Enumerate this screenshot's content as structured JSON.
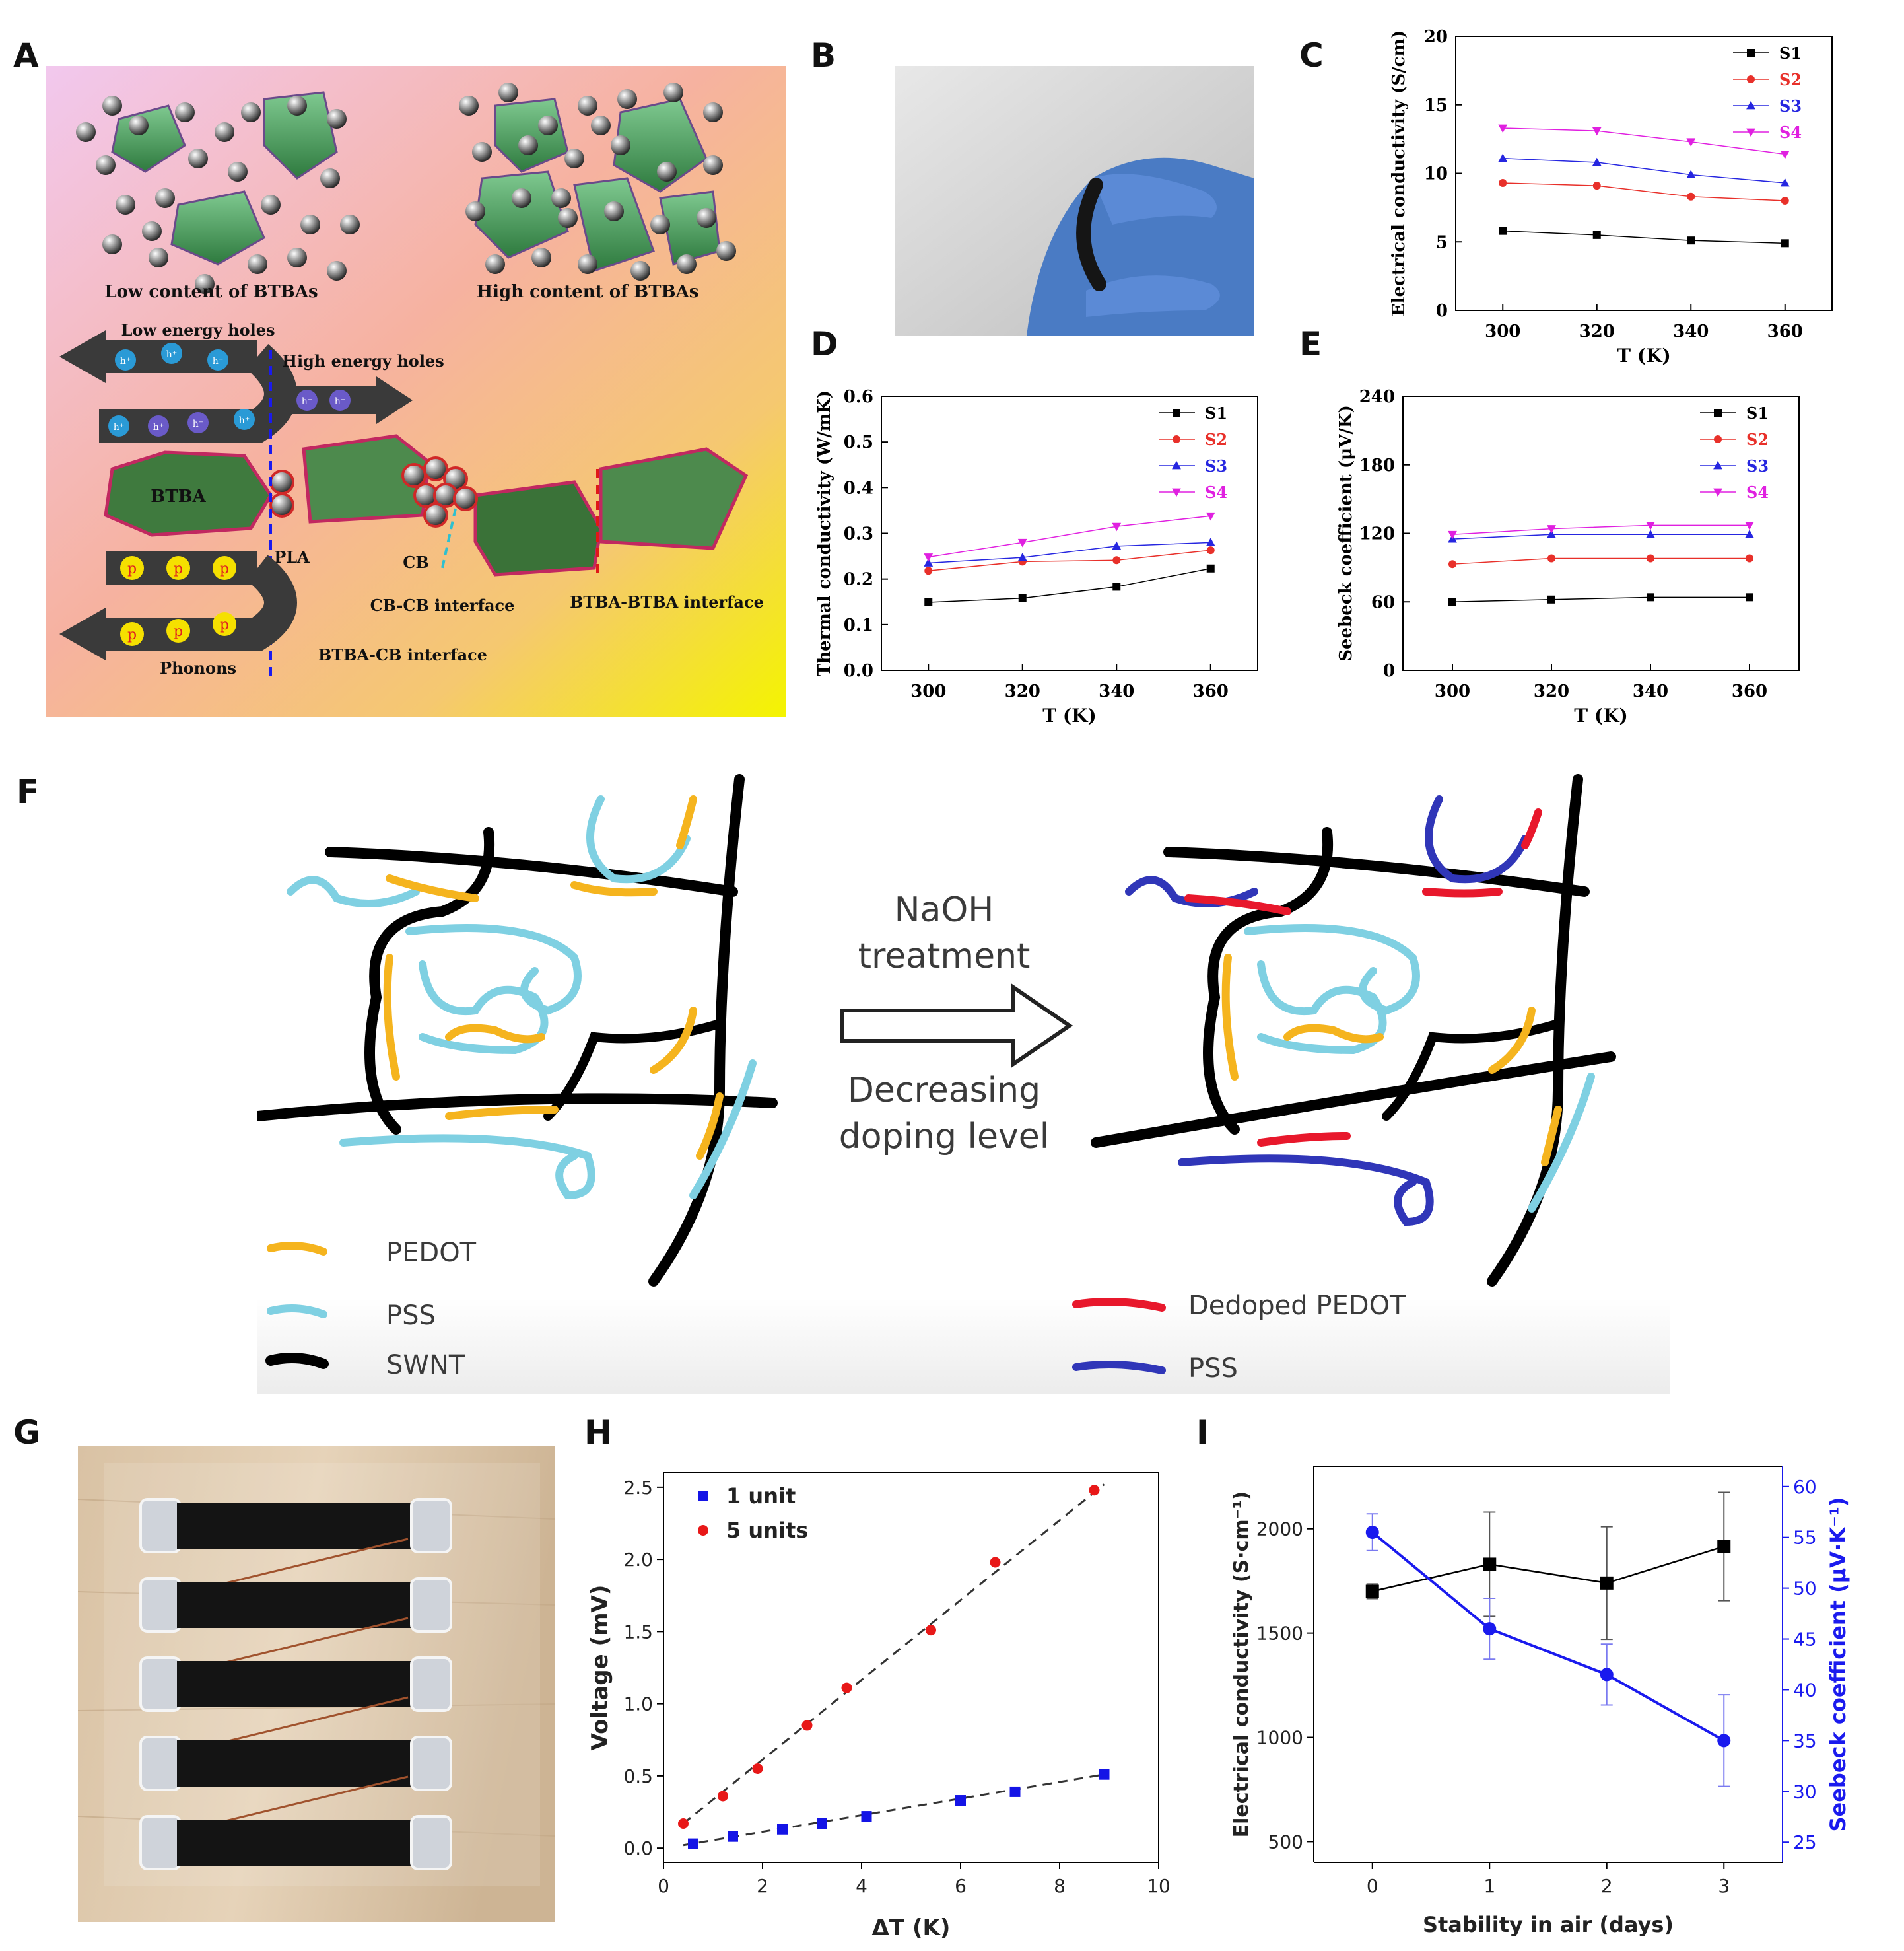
{
  "panel_letters": [
    "A",
    "B",
    "C",
    "D",
    "E",
    "F",
    "G",
    "H",
    "I"
  ],
  "panelA": {
    "low_caption": "Low content of BTBAs",
    "high_caption": "High content of BTBAs",
    "low_energy_holes": "Low energy holes",
    "high_energy_holes": "High energy holes",
    "hole_symbol": "h⁺",
    "phonon_symbol": "p",
    "btba": "BTBA",
    "pla": "PLA",
    "cb": "CB",
    "cb_cb_interface": "CB-CB interface",
    "btba_btba_interface": "BTBA-BTBA interface",
    "btba_cb_interface": "BTBA-CB interface",
    "phonons": "Phonons"
  },
  "panelF": {
    "arrow_top": [
      "NaOH",
      "treatment"
    ],
    "arrow_bottom": [
      "Decreasing",
      "doping level"
    ],
    "legend": [
      "PEDOT",
      "PSS",
      "SWNT",
      "Dedoped PEDOT",
      "PSS"
    ],
    "colors": {
      "pedot": "#f5b41e",
      "pss": "#7fd0e2",
      "swnt": "#000000",
      "dedoped": "#e8182c",
      "pss2": "#3036b8"
    }
  },
  "chart_data": [
    {
      "id": "C",
      "type": "line",
      "x": [
        300,
        320,
        340,
        360
      ],
      "xlabel": "T (K)",
      "ylabel": "Electrical conductivity (S/cm)",
      "xlim": [
        290,
        370
      ],
      "ylim": [
        0,
        20
      ],
      "xticks": [
        300,
        320,
        340,
        360
      ],
      "yticks": [
        0,
        5,
        10,
        15,
        20
      ],
      "legend_position": "top-right",
      "series": [
        {
          "name": "S1",
          "color": "#000000",
          "marker": "square",
          "values": [
            5.8,
            5.5,
            5.1,
            4.9
          ]
        },
        {
          "name": "S2",
          "color": "#e8302a",
          "marker": "circle",
          "values": [
            9.3,
            9.1,
            8.3,
            8.0
          ]
        },
        {
          "name": "S3",
          "color": "#2626e0",
          "marker": "triangle-up",
          "values": [
            11.1,
            10.8,
            9.9,
            9.3
          ]
        },
        {
          "name": "S4",
          "color": "#e020e0",
          "marker": "triangle-down",
          "values": [
            13.3,
            13.1,
            12.3,
            11.4
          ]
        }
      ]
    },
    {
      "id": "D",
      "type": "line",
      "x": [
        300,
        320,
        340,
        360
      ],
      "xlabel": "T (K)",
      "ylabel": "Thermal conductivity (W/mK)",
      "xlim": [
        290,
        370
      ],
      "ylim": [
        0,
        0.6
      ],
      "xticks": [
        300,
        320,
        340,
        360
      ],
      "yticks": [
        0.0,
        0.1,
        0.2,
        0.3,
        0.4,
        0.5,
        0.6
      ],
      "legend_position": "top-right",
      "series": [
        {
          "name": "S1",
          "color": "#000000",
          "marker": "square",
          "values": [
            0.149,
            0.158,
            0.183,
            0.223
          ]
        },
        {
          "name": "S2",
          "color": "#e8302a",
          "marker": "circle",
          "values": [
            0.218,
            0.238,
            0.241,
            0.263
          ]
        },
        {
          "name": "S3",
          "color": "#2626e0",
          "marker": "triangle-up",
          "values": [
            0.235,
            0.247,
            0.272,
            0.28
          ]
        },
        {
          "name": "S4",
          "color": "#e020e0",
          "marker": "triangle-down",
          "values": [
            0.248,
            0.28,
            0.315,
            0.338
          ]
        }
      ]
    },
    {
      "id": "E",
      "type": "line",
      "x": [
        300,
        320,
        340,
        360
      ],
      "xlabel": "T (K)",
      "ylabel": "Seebeck coefficient (μV/K)",
      "xlim": [
        290,
        370
      ],
      "ylim": [
        0,
        240
      ],
      "xticks": [
        300,
        320,
        340,
        360
      ],
      "yticks": [
        0,
        60,
        120,
        180,
        240
      ],
      "legend_position": "top-right",
      "series": [
        {
          "name": "S1",
          "color": "#000000",
          "marker": "square",
          "values": [
            60,
            62,
            64,
            64
          ]
        },
        {
          "name": "S2",
          "color": "#e8302a",
          "marker": "circle",
          "values": [
            93,
            98,
            98,
            98
          ]
        },
        {
          "name": "S3",
          "color": "#2626e0",
          "marker": "triangle-up",
          "values": [
            115,
            119,
            119,
            119
          ]
        },
        {
          "name": "S4",
          "color": "#e020e0",
          "marker": "triangle-down",
          "values": [
            119,
            124,
            127,
            127
          ]
        }
      ]
    },
    {
      "id": "H",
      "type": "scatter",
      "xlabel": "ΔT (K)",
      "ylabel": "Voltage (mV)",
      "xlim": [
        0,
        10
      ],
      "ylim": [
        -0.1,
        2.6
      ],
      "xticks": [
        0,
        2,
        4,
        6,
        8,
        10
      ],
      "yticks": [
        0.0,
        0.5,
        1.0,
        1.5,
        2.0,
        2.5
      ],
      "legend_position": "top-left",
      "series": [
        {
          "name": "1 unit",
          "color": "#1414e6",
          "marker": "square",
          "x": [
            0.6,
            1.4,
            2.4,
            3.2,
            4.1,
            6.0,
            7.1,
            8.9
          ],
          "y": [
            0.03,
            0.08,
            0.13,
            0.17,
            0.22,
            0.33,
            0.39,
            0.51
          ]
        },
        {
          "name": "5 units",
          "color": "#e81818",
          "marker": "circle",
          "x": [
            0.4,
            1.2,
            1.9,
            2.9,
            3.7,
            5.4,
            6.7,
            8.7
          ],
          "y": [
            0.17,
            0.36,
            0.55,
            0.85,
            1.11,
            1.51,
            1.98,
            2.48
          ]
        }
      ],
      "fits": [
        {
          "color": "#333333",
          "from": [
            0.4,
            0.17
          ],
          "to": [
            8.9,
            2.52
          ]
        },
        {
          "color": "#333333",
          "from": [
            0.4,
            0.02
          ],
          "to": [
            8.9,
            0.51
          ]
        }
      ]
    },
    {
      "id": "I",
      "type": "line",
      "xlabel": "Stability in air (days)",
      "ylabel": "Electrical conductivity (S·cm⁻¹)",
      "y2label": "Seebeck coefficient (μV·K⁻¹)",
      "x": [
        0,
        1,
        2,
        3
      ],
      "xlim": [
        -0.5,
        3.5
      ],
      "ylim": [
        400,
        2300
      ],
      "y2lim": [
        23,
        62
      ],
      "xticks": [
        0,
        1,
        2,
        3
      ],
      "yticks": [
        500,
        1000,
        1500,
        2000
      ],
      "y2ticks": [
        25,
        30,
        35,
        40,
        45,
        50,
        55,
        60
      ],
      "series": [
        {
          "name": "Electrical conductivity",
          "axis": "left",
          "color": "#000000",
          "marker": "square",
          "values": [
            1700,
            1830,
            1740,
            1915
          ],
          "err": [
            35,
            250,
            270,
            260
          ]
        },
        {
          "name": "Seebeck coefficient",
          "axis": "right",
          "color": "#1a1aee",
          "marker": "circle",
          "values": [
            55.5,
            46.0,
            41.5,
            35.0
          ],
          "err": [
            1.8,
            3.0,
            3.0,
            4.5
          ]
        }
      ]
    }
  ]
}
